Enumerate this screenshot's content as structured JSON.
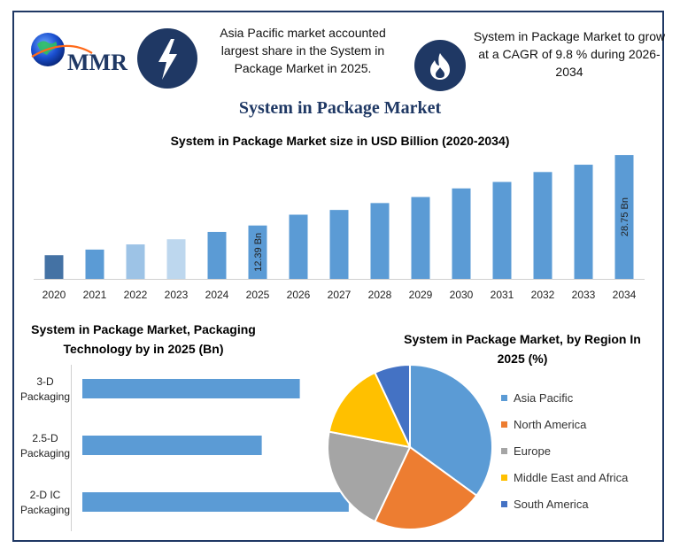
{
  "header": {
    "logo_text": "MMR",
    "info_left": "Asia Pacific market accounted largest share in the System in Package Market in 2025.",
    "info_right": "System in Package Market to grow at a CAGR of 9.8 % during 2026-2034",
    "left_badge_icon": "lightning-bolt-icon",
    "right_badge_icon": "flame-icon"
  },
  "title": "System in Package Market",
  "colors": {
    "navy": "#1f3864",
    "bar_blue": "#5b9bd5",
    "bar_dark": "#4472a4",
    "bar_light": "#9dc3e6",
    "bar_lighter": "#bdd7ee",
    "asia_pacific": "#5b9bd5",
    "north_america": "#ed7d31",
    "europe": "#a5a5a5",
    "mea": "#ffc000",
    "south_america": "#4472c4"
  },
  "chart_data": [
    {
      "type": "bar",
      "title": "System in Package Market size in USD Billion (2020-2034)",
      "categories": [
        "2020",
        "2021",
        "2022",
        "2023",
        "2024",
        "2025",
        "2026",
        "2027",
        "2028",
        "2029",
        "2030",
        "2031",
        "2032",
        "2033",
        "2034"
      ],
      "values": [
        5.5,
        6.8,
        8.0,
        9.2,
        10.9,
        12.39,
        14.9,
        16.0,
        17.6,
        19.0,
        21.0,
        22.5,
        24.8,
        26.5,
        28.75
      ],
      "data_labels": [
        {
          "category": "2025",
          "text": "12.39 Bn"
        },
        {
          "category": "2034",
          "text": "28.75 Bn"
        }
      ],
      "ylim": [
        0,
        30
      ],
      "grid": false
    },
    {
      "type": "bar",
      "orientation": "horizontal",
      "title": "System in Package Market,  Packaging Technology by in 2025 (Bn)",
      "categories": [
        "3-D Packaging",
        "2.5-D Packaging",
        "2-D IC Packaging"
      ],
      "category_lines": [
        [
          "3-D",
          "Packaging"
        ],
        [
          "2.5-D",
          "Packaging"
        ],
        [
          "2-D IC",
          "Packaging"
        ]
      ],
      "values": [
        4.0,
        3.3,
        4.9
      ],
      "xlim": [
        0,
        5
      ]
    },
    {
      "type": "pie",
      "title": "System in Package Market, by Region In 2025 (%)",
      "labels": [
        "Asia Pacific",
        "North America",
        "Europe",
        "Middle East and Africa",
        "South America"
      ],
      "values": [
        35,
        22,
        21,
        15,
        7
      ],
      "legend": "right"
    }
  ]
}
